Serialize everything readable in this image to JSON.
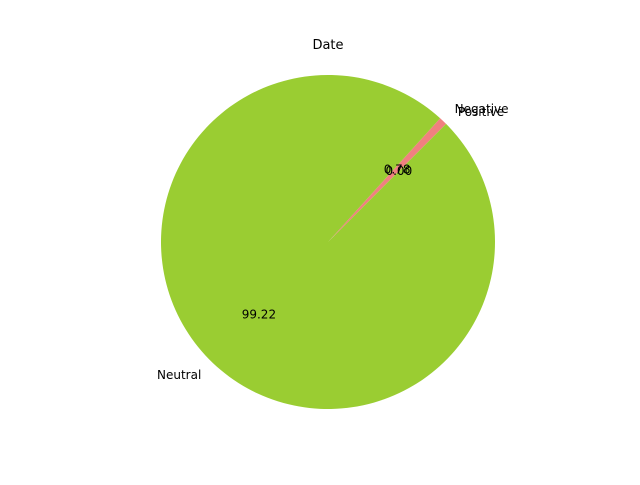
{
  "chart_data": {
    "type": "pie",
    "title": "Date",
    "slices": [
      {
        "label": "Positive",
        "value": 0.0,
        "pct_text": "0.00",
        "color": "#f08080"
      },
      {
        "label": "Negative",
        "value": 0.78,
        "pct_text": "0.78",
        "color": "#f08080"
      },
      {
        "label": "Neutral",
        "value": 99.22,
        "pct_text": "99.22",
        "color": "#9acd32"
      }
    ],
    "start_angle_deg": 45,
    "counterclockwise": true
  }
}
